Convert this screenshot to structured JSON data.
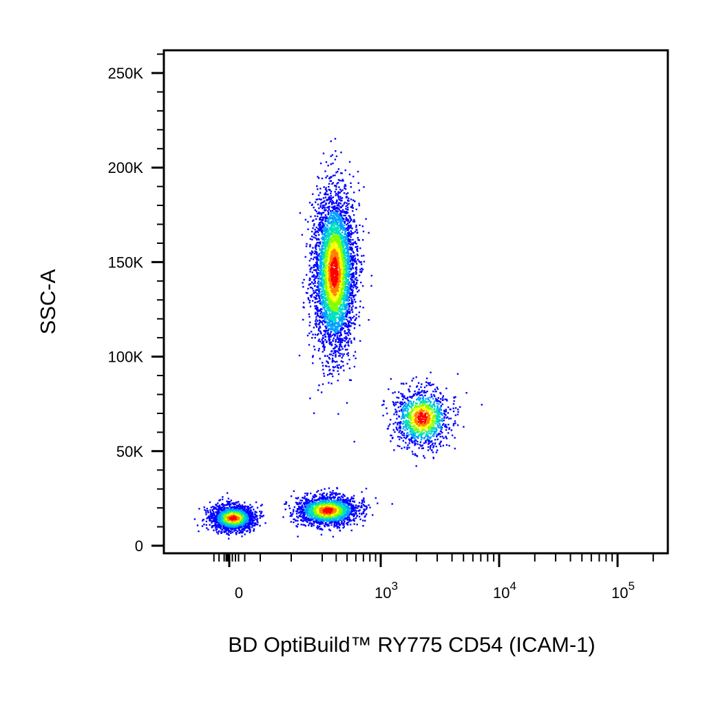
{
  "chart_data": {
    "type": "scatter",
    "style": "density-pseudocolor",
    "xlabel": "BD OptiBuild™ RY775 CD54 (ICAM-1)",
    "ylabel": "SSC-A",
    "x_scale": "biexponential",
    "ylim": [
      0,
      262144
    ],
    "xlim": [
      -200,
      200000
    ],
    "x_ticks": [
      {
        "value": 0,
        "label": "0"
      },
      {
        "value": 1000,
        "label": "10",
        "exp": "3"
      },
      {
        "value": 10000,
        "label": "10",
        "exp": "4"
      },
      {
        "value": 100000,
        "label": "10",
        "exp": "5"
      }
    ],
    "y_ticks": [
      {
        "value": 0,
        "label": "0"
      },
      {
        "value": 50000,
        "label": "50K"
      },
      {
        "value": 100000,
        "label": "100K"
      },
      {
        "value": 150000,
        "label": "150K"
      },
      {
        "value": 200000,
        "label": "200K"
      },
      {
        "value": 250000,
        "label": "250K"
      }
    ],
    "populations": [
      {
        "x_center": 10,
        "y_center": 15000,
        "x_spread": 60,
        "y_spread": 6000,
        "relative_events": 0.22
      },
      {
        "x_center": 330,
        "y_center": 19000,
        "x_spread": 250,
        "y_spread": 7000,
        "relative_events": 0.2
      },
      {
        "x_center": 380,
        "y_center": 145000,
        "x_spread": 180,
        "y_spread": 38000,
        "relative_events": 0.45
      },
      {
        "x_center": 2200,
        "y_center": 68000,
        "x_spread": 1400,
        "y_spread": 14000,
        "relative_events": 0.13
      }
    ],
    "density_colors": [
      "#0000ff",
      "#00a0ff",
      "#00e0c0",
      "#80ff00",
      "#ffff00",
      "#ff8000",
      "#ff0000"
    ],
    "grid": false,
    "legend": "none"
  }
}
